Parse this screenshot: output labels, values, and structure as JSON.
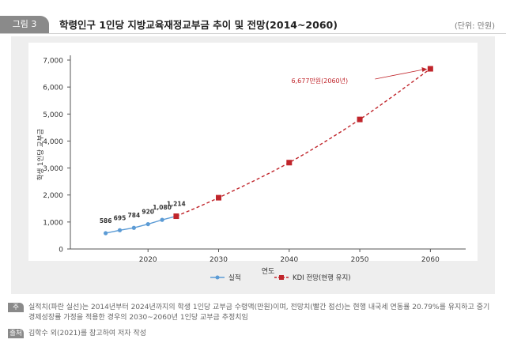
{
  "figure": {
    "label": "그림 3",
    "title": "학령인구 1인당 지방교육재정교부금 추이 및 전망(2014~2060)",
    "unit": "(단위: 만원)"
  },
  "notes": [
    {
      "tag": "주",
      "text": "실적치(파란 실선)는 2014년부터 2024년까지의 학생 1인당 교부금 수령액(만원)이며, 전망치(빨간 점선)는 현행 내국세 연동률 20.79%를 유지하고 중기 경제성장률 가정을 적용한 경우의 2030~2060년 1인당 교부금 추정치임"
    },
    {
      "tag": "출처",
      "text": "김학수 외(2021)를 참고하여 저자 작성"
    }
  ],
  "chart_data": {
    "type": "line",
    "xlabel": "연도",
    "ylabel": "학생 1인당 교부금",
    "xlim": [
      2009,
      2065
    ],
    "ylim": [
      0,
      7000
    ],
    "xticks": [
      2020,
      2030,
      2040,
      2050,
      2060
    ],
    "yticks": [
      0,
      1000,
      2000,
      3000,
      4000,
      5000,
      6000,
      7000
    ],
    "ytick_labels": [
      "0",
      "1,000",
      "2,000",
      "3,000",
      "4,000",
      "5,000",
      "6,000",
      "7,000"
    ],
    "grid": false,
    "legend_position": "bottom-center",
    "series": [
      {
        "name": "실적",
        "color": "#5b9bd5",
        "marker": "circle",
        "line_style": "solid",
        "x": [
          2014,
          2016,
          2018,
          2020,
          2022,
          2024
        ],
        "y": [
          586,
          695,
          784,
          920,
          1080,
          1214
        ],
        "data_labels": [
          "586",
          "695",
          "784",
          "920",
          "1,080",
          "1,214"
        ]
      },
      {
        "name": "KDI 전망(현행 유지)",
        "color": "#c0252b",
        "marker": "square",
        "line_style": "dashed",
        "x": [
          2024,
          2030,
          2040,
          2050,
          2060
        ],
        "y": [
          1214,
          1900,
          3200,
          4800,
          6677
        ]
      }
    ],
    "annotation": {
      "text": "6,677만원(2060년)",
      "x": 2060,
      "y": 6677,
      "color": "#c0252b"
    }
  }
}
